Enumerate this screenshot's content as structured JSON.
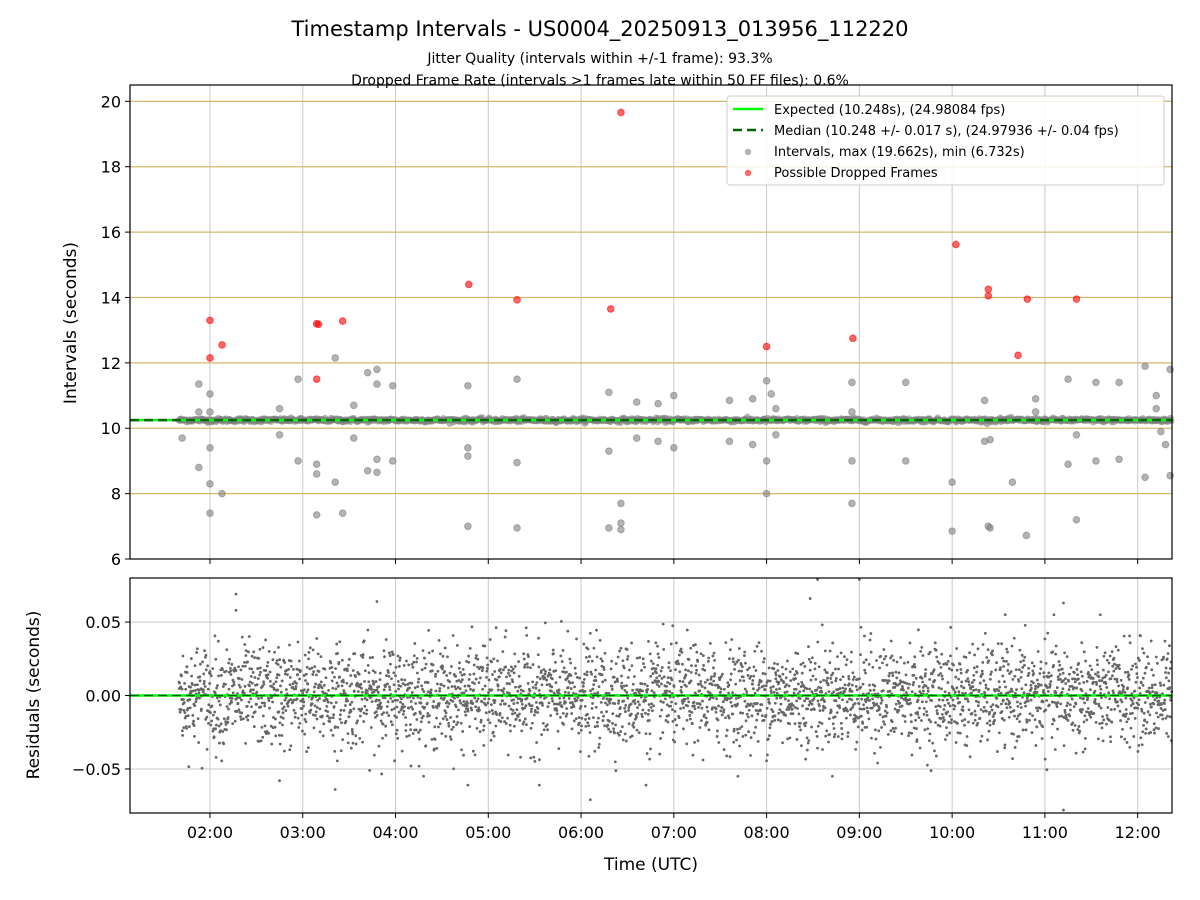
{
  "chart_data": [
    {
      "type": "scatter",
      "title": "Timestamp Intervals - US0004_20250913_013956_112220",
      "subtitle_lines": [
        "Jitter Quality (intervals within +/-1 frame): 93.3%",
        "Dropped Frame Rate (intervals >1 frames late within 50 FF files): 0.6%"
      ],
      "ylabel": "Intervals (seconds)",
      "xlabel": "",
      "xlim_hours": [
        1.138,
        12.37
      ],
      "ylim": [
        6,
        20.5
      ],
      "yticks": [
        6,
        8,
        10,
        12,
        14,
        16,
        18,
        20
      ],
      "ytick_labels": [
        "6",
        "8",
        "10",
        "12",
        "14",
        "16",
        "18",
        "20"
      ],
      "grid": "vertical gray at hour ticks, horizontal goldenrod at y ticks",
      "legend_placement": "top-right",
      "legend": [
        "Expected (10.248s), (24.98084 fps)",
        "Median (10.248 +/- 0.017 s), (24.97936 +/- 0.04 fps)",
        "Intervals, max (19.662s), min (6.732s)",
        "Possible Dropped Frames"
      ],
      "expected": 10.248,
      "median": 10.248,
      "median_std": 0.017,
      "data_start_hour": 1.666,
      "data_end_hour": 12.37,
      "band_points_per_hour": 120,
      "outliers": [
        [
          1.7,
          9.7
        ],
        [
          1.88,
          11.35
        ],
        [
          1.88,
          10.5
        ],
        [
          1.88,
          8.8
        ],
        [
          2.0,
          11.05
        ],
        [
          2.0,
          10.5
        ],
        [
          2.0,
          9.4
        ],
        [
          2.0,
          8.3
        ],
        [
          2.0,
          7.4
        ],
        [
          2.13,
          8.0
        ],
        [
          2.75,
          10.6
        ],
        [
          2.75,
          9.8
        ],
        [
          2.95,
          11.5
        ],
        [
          2.95,
          9.0
        ],
        [
          3.15,
          8.9
        ],
        [
          3.15,
          8.6
        ],
        [
          3.15,
          7.35
        ],
        [
          3.35,
          12.15
        ],
        [
          3.35,
          8.35
        ],
        [
          3.43,
          7.4
        ],
        [
          3.55,
          10.7
        ],
        [
          3.55,
          9.7
        ],
        [
          3.7,
          11.7
        ],
        [
          3.7,
          8.7
        ],
        [
          3.8,
          11.8
        ],
        [
          3.8,
          11.35
        ],
        [
          3.8,
          9.05
        ],
        [
          3.8,
          8.65
        ],
        [
          3.97,
          11.3
        ],
        [
          3.97,
          9.0
        ],
        [
          4.78,
          11.3
        ],
        [
          4.78,
          9.4
        ],
        [
          4.78,
          9.15
        ],
        [
          4.78,
          7.0
        ],
        [
          5.31,
          11.5
        ],
        [
          5.31,
          8.95
        ],
        [
          5.31,
          6.95
        ],
        [
          6.3,
          11.1
        ],
        [
          6.3,
          9.3
        ],
        [
          6.3,
          6.95
        ],
        [
          6.43,
          7.7
        ],
        [
          6.43,
          7.1
        ],
        [
          6.43,
          6.9
        ],
        [
          6.6,
          10.8
        ],
        [
          6.6,
          9.7
        ],
        [
          6.83,
          10.75
        ],
        [
          6.83,
          9.6
        ],
        [
          7.0,
          11.0
        ],
        [
          7.0,
          9.4
        ],
        [
          7.6,
          10.85
        ],
        [
          7.6,
          9.6
        ],
        [
          7.85,
          10.9
        ],
        [
          7.85,
          9.5
        ],
        [
          8.0,
          11.45
        ],
        [
          8.0,
          9.0
        ],
        [
          8.0,
          8.0
        ],
        [
          8.05,
          11.05
        ],
        [
          8.1,
          10.6
        ],
        [
          8.1,
          9.8
        ],
        [
          8.92,
          11.4
        ],
        [
          8.92,
          10.5
        ],
        [
          8.92,
          9.0
        ],
        [
          8.92,
          7.7
        ],
        [
          9.5,
          11.4
        ],
        [
          9.5,
          9.0
        ],
        [
          10.0,
          8.35
        ],
        [
          10.0,
          6.85
        ],
        [
          10.35,
          10.85
        ],
        [
          10.35,
          9.6
        ],
        [
          10.39,
          7.0
        ],
        [
          10.41,
          6.95
        ],
        [
          10.41,
          9.65
        ],
        [
          10.65,
          8.35
        ],
        [
          10.8,
          6.72
        ],
        [
          10.9,
          10.9
        ],
        [
          10.9,
          10.5
        ],
        [
          11.25,
          11.5
        ],
        [
          11.25,
          8.9
        ],
        [
          11.34,
          9.8
        ],
        [
          11.34,
          7.2
        ],
        [
          11.55,
          11.4
        ],
        [
          11.55,
          9.0
        ],
        [
          11.8,
          11.4
        ],
        [
          11.8,
          9.05
        ],
        [
          12.08,
          11.9
        ],
        [
          12.08,
          8.5
        ],
        [
          12.2,
          11.0
        ],
        [
          12.2,
          10.6
        ],
        [
          12.25,
          9.9
        ],
        [
          12.3,
          9.5
        ],
        [
          12.35,
          11.8
        ],
        [
          12.35,
          8.55
        ]
      ],
      "dropped_frames": [
        [
          2.0,
          13.3
        ],
        [
          2.0,
          12.15
        ],
        [
          2.13,
          12.55
        ],
        [
          3.15,
          13.2
        ],
        [
          3.17,
          13.18
        ],
        [
          3.15,
          11.5
        ],
        [
          3.43,
          13.28
        ],
        [
          4.79,
          14.4
        ],
        [
          5.31,
          13.93
        ],
        [
          6.32,
          13.65
        ],
        [
          6.43,
          19.66
        ],
        [
          8.0,
          12.5
        ],
        [
          8.93,
          12.75
        ],
        [
          10.04,
          15.62
        ],
        [
          10.39,
          14.25
        ],
        [
          10.39,
          14.05
        ],
        [
          10.71,
          12.23
        ],
        [
          10.81,
          13.95
        ],
        [
          11.34,
          13.95
        ]
      ]
    },
    {
      "type": "scatter",
      "ylabel": "Residuals (seconds)",
      "xlabel": "Time (UTC)",
      "xlim_hours": [
        1.138,
        12.37
      ],
      "ylim": [
        -0.08,
        0.08
      ],
      "yticks": [
        -0.05,
        0.0,
        0.05
      ],
      "ytick_labels": [
        "−0.05",
        "0.00",
        "0.05"
      ],
      "xticks_hours": [
        2,
        3,
        4,
        5,
        6,
        7,
        8,
        9,
        10,
        11,
        12
      ],
      "xtick_labels": [
        "02:00",
        "03:00",
        "04:00",
        "05:00",
        "06:00",
        "07:00",
        "08:00",
        "09:00",
        "10:00",
        "11:00",
        "12:00"
      ],
      "residual_std": 0.017,
      "residual_points_per_hour": 330,
      "residual_outliers": [
        [
          2.28,
          0.069
        ],
        [
          2.28,
          0.058
        ],
        [
          3.8,
          0.064
        ],
        [
          8.47,
          0.066
        ],
        [
          8.55,
          0.079
        ],
        [
          9.0,
          0.079
        ],
        [
          11.2,
          0.063
        ],
        [
          11.2,
          -0.078
        ],
        [
          6.1,
          -0.071
        ],
        [
          5.55,
          -0.061
        ],
        [
          6.7,
          -0.061
        ],
        [
          4.78,
          -0.061
        ],
        [
          2.75,
          -0.058
        ],
        [
          3.35,
          -0.064
        ]
      ]
    }
  ],
  "colors": {
    "expected": "#00ff00",
    "median": "#006400",
    "intervals": "#808080",
    "dropped": "#ff0000",
    "hgrid": "#d4b86a",
    "vgrid": "#c8c8c8"
  }
}
